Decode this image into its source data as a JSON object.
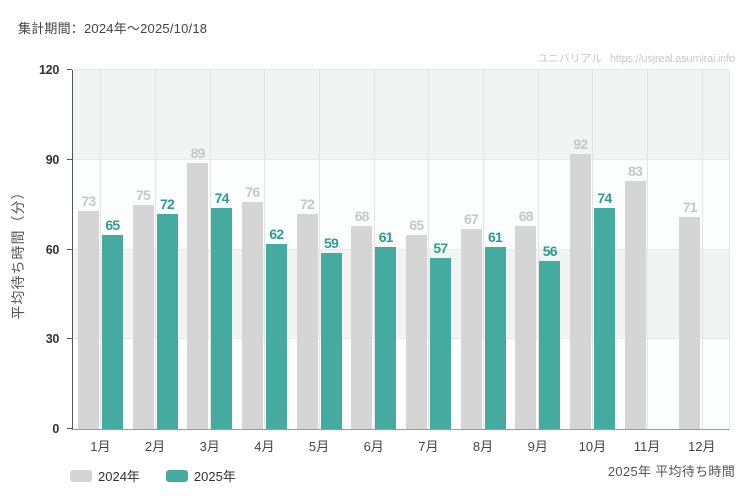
{
  "header": {
    "title": "集計期間：2024年〜2025/10/18",
    "watermark_brand": "ユニバリアル",
    "watermark_url": "https://usjreal.asumirai.info"
  },
  "footer": {
    "note": "2025年 平均待ち時間"
  },
  "legend": [
    {
      "label": "2024年",
      "color": "#d4d5d4"
    },
    {
      "label": "2025年",
      "color": "#45aaa0"
    }
  ],
  "chart_data": {
    "type": "bar",
    "title": "集計期間：2024年〜2025/10/18",
    "categories": [
      "1月",
      "2月",
      "3月",
      "4月",
      "5月",
      "6月",
      "7月",
      "8月",
      "9月",
      "10月",
      "11月",
      "12月"
    ],
    "series": [
      {
        "name": "2024年",
        "color": "#d4d5d4",
        "label_color": "#c6c8c7",
        "values": [
          73,
          75,
          89,
          76,
          72,
          68,
          65,
          67,
          68,
          92,
          83,
          71
        ]
      },
      {
        "name": "2025年",
        "color": "#45aaa0",
        "label_color": "#2d9d92",
        "values": [
          65,
          72,
          74,
          62,
          59,
          61,
          57,
          61,
          56,
          74,
          null,
          null
        ]
      }
    ],
    "xlabel": "",
    "ylabel": "平均待ち時間（分）",
    "ylim": [
      0,
      120
    ],
    "yticks": [
      0,
      30,
      60,
      90,
      120
    ],
    "grid": true,
    "split_area": true,
    "legend_position": "bottom-left",
    "value_labels": true
  }
}
